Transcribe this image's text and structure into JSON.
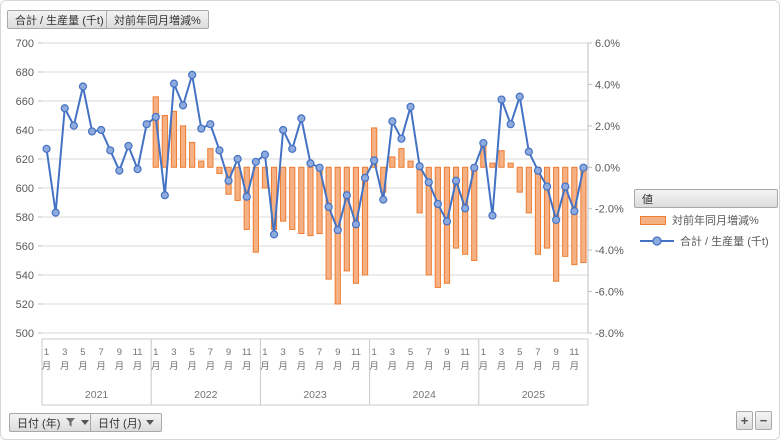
{
  "toolbar": {
    "field_button_production": "合計 / 生産量 (千t)",
    "field_button_yoy": "対前年同月増減%"
  },
  "legend": {
    "header": "値",
    "items": [
      {
        "label": "対前年同月増減%",
        "type": "bar",
        "color": "#ed7d31"
      },
      {
        "label": "合計 / 生産量 (千t)",
        "type": "line",
        "color": "#4472c4"
      }
    ]
  },
  "axis_field_buttons": [
    {
      "label": "日付 (年)",
      "has_filter": true
    },
    {
      "label": "日付 (月)",
      "has_filter": false
    }
  ],
  "expand_collapse": {
    "expand": "+",
    "collapse": "−"
  },
  "chart_data": {
    "type": "combo",
    "x_start": "2021-01",
    "x_interval": "month",
    "years": [
      "2021",
      "2022",
      "2023",
      "2024",
      "2025"
    ],
    "months_per_year": 12,
    "month_tick_numbers": [
      "1",
      "3",
      "5",
      "7",
      "9",
      "11"
    ],
    "month_suffix": "月",
    "left_axis": {
      "title": "",
      "min": 500,
      "max": 700,
      "step": 20,
      "labels": [
        "700",
        "680",
        "660",
        "640",
        "620",
        "600",
        "580",
        "560",
        "540",
        "520",
        "500"
      ]
    },
    "right_axis": {
      "title": "",
      "min": -8,
      "max": 6,
      "step": 2,
      "labels": [
        "6.0%",
        "4.0%",
        "2.0%",
        "0.0%",
        "-2.0%",
        "-4.0%",
        "-6.0%",
        "-8.0%"
      ]
    },
    "grid": "horizontal",
    "legend_position": "right",
    "series": [
      {
        "name": "対前年同月増減%",
        "type": "bar",
        "axis": "right",
        "color": "#ed7d31",
        "fill": "#f5b183",
        "values": [
          null,
          null,
          null,
          null,
          null,
          null,
          null,
          null,
          null,
          null,
          null,
          null,
          3.4,
          2.5,
          2.7,
          2.0,
          1.2,
          0.3,
          0.9,
          -0.3,
          -1.3,
          -1.6,
          -3.0,
          -4.1,
          -1.0,
          -3.0,
          -2.6,
          -3.0,
          -3.2,
          -3.3,
          -3.2,
          -5.4,
          -6.6,
          -5.0,
          -5.6,
          -5.2,
          1.9,
          -1.2,
          0.5,
          0.9,
          0.3,
          -2.2,
          -5.2,
          -5.8,
          -5.6,
          -3.9,
          -4.2,
          -4.5,
          1.2,
          0.2,
          0.8,
          0.2,
          -1.2,
          -2.2,
          -4.2,
          -3.9,
          -5.5,
          -4.3,
          -4.7,
          -4.6
        ]
      },
      {
        "name": "合計 / 生産量 (千t)",
        "type": "line",
        "axis": "left",
        "color": "#4472c4",
        "marker_fill": "#8faadc",
        "values": [
          627,
          583,
          655,
          643,
          670,
          639,
          640,
          626,
          612,
          629,
          613,
          644,
          649,
          595,
          672,
          657,
          678,
          641,
          644,
          626,
          605,
          620,
          594,
          618,
          623,
          568,
          640,
          627,
          648,
          617,
          614,
          587,
          571,
          595,
          575,
          607,
          619,
          592,
          646,
          634,
          656,
          615,
          604,
          589,
          577,
          605,
          586,
          614,
          631,
          581,
          661,
          644,
          663,
          625,
          612,
          601,
          578,
          601,
          584,
          614
        ]
      }
    ]
  }
}
